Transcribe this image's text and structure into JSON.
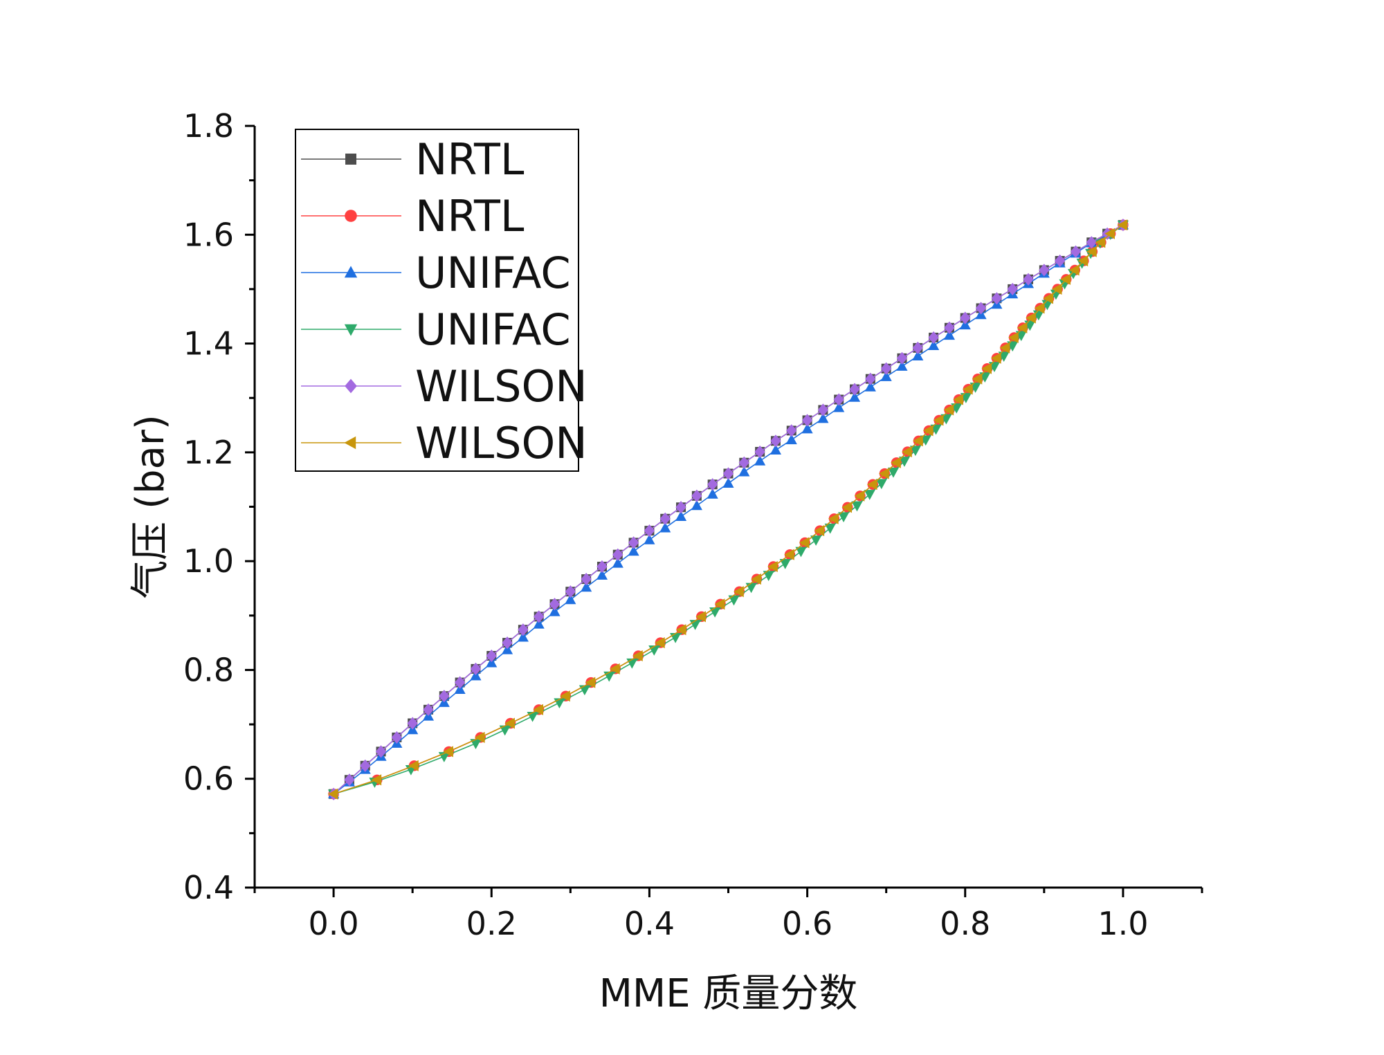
{
  "chart_data": {
    "type": "line",
    "title": "",
    "xlabel": "MME 质量分数",
    "ylabel": "气压 (bar)",
    "xlim": [
      -0.1,
      1.1
    ],
    "ylim": [
      0.4,
      1.8
    ],
    "xticks": [
      0.0,
      0.2,
      0.4,
      0.6,
      0.8,
      1.0
    ],
    "yticks": [
      0.4,
      0.6,
      0.8,
      1.0,
      1.2,
      1.4,
      1.6,
      1.8
    ],
    "xtick_labels": [
      "0.0",
      "0.2",
      "0.4",
      "0.6",
      "0.8",
      "1.0"
    ],
    "ytick_labels": [
      "0.4",
      "0.6",
      "0.8",
      "1.0",
      "1.2",
      "1.4",
      "1.6",
      "1.8"
    ],
    "grid": false,
    "legend_position": "top-left",
    "series": [
      {
        "name": "NRTL",
        "color": "#4d4d4d",
        "marker": "square",
        "x": [
          0.0,
          0.02,
          0.04,
          0.06,
          0.08,
          0.1,
          0.12,
          0.14,
          0.16,
          0.18,
          0.2,
          0.22,
          0.24,
          0.26,
          0.28,
          0.3,
          0.32,
          0.34,
          0.36,
          0.38,
          0.4,
          0.42,
          0.44,
          0.46,
          0.48,
          0.5,
          0.52,
          0.54,
          0.56,
          0.58,
          0.6,
          0.62,
          0.64,
          0.66,
          0.68,
          0.7,
          0.72,
          0.74,
          0.76,
          0.78,
          0.8,
          0.82,
          0.84,
          0.86,
          0.88,
          0.9,
          0.92,
          0.94,
          0.96,
          0.98,
          1.0
        ],
        "y": [
          0.572,
          0.598,
          0.624,
          0.65,
          0.676,
          0.702,
          0.727,
          0.752,
          0.777,
          0.802,
          0.826,
          0.85,
          0.874,
          0.898,
          0.921,
          0.944,
          0.967,
          0.99,
          1.012,
          1.034,
          1.056,
          1.078,
          1.099,
          1.12,
          1.141,
          1.161,
          1.181,
          1.201,
          1.221,
          1.24,
          1.259,
          1.278,
          1.297,
          1.316,
          1.335,
          1.354,
          1.373,
          1.392,
          1.411,
          1.429,
          1.447,
          1.465,
          1.483,
          1.5,
          1.518,
          1.535,
          1.552,
          1.569,
          1.586,
          1.602,
          1.618
        ]
      },
      {
        "name": "NRTL",
        "color": "#ff4040",
        "marker": "circle",
        "x": [
          0.0,
          0.055,
          0.102,
          0.146,
          0.186,
          0.224,
          0.26,
          0.294,
          0.326,
          0.357,
          0.386,
          0.414,
          0.441,
          0.466,
          0.49,
          0.514,
          0.536,
          0.557,
          0.578,
          0.597,
          0.616,
          0.634,
          0.651,
          0.667,
          0.683,
          0.698,
          0.713,
          0.727,
          0.741,
          0.754,
          0.767,
          0.78,
          0.792,
          0.804,
          0.816,
          0.828,
          0.84,
          0.851,
          0.862,
          0.873,
          0.884,
          0.895,
          0.906,
          0.917,
          0.928,
          0.939,
          0.95,
          0.961,
          0.972,
          0.984,
          1.0
        ],
        "y": [
          0.572,
          0.598,
          0.624,
          0.65,
          0.676,
          0.702,
          0.727,
          0.752,
          0.777,
          0.802,
          0.826,
          0.85,
          0.874,
          0.898,
          0.921,
          0.944,
          0.967,
          0.99,
          1.012,
          1.034,
          1.056,
          1.078,
          1.099,
          1.12,
          1.141,
          1.161,
          1.181,
          1.201,
          1.221,
          1.24,
          1.259,
          1.278,
          1.297,
          1.316,
          1.335,
          1.354,
          1.373,
          1.392,
          1.411,
          1.429,
          1.447,
          1.465,
          1.483,
          1.5,
          1.518,
          1.535,
          1.552,
          1.569,
          1.586,
          1.602,
          1.618
        ]
      },
      {
        "name": "UNIFAC",
        "color": "#1f6fe0",
        "marker": "triangle-up",
        "x": [
          0.0,
          0.02,
          0.04,
          0.06,
          0.08,
          0.1,
          0.12,
          0.14,
          0.16,
          0.18,
          0.2,
          0.22,
          0.24,
          0.26,
          0.28,
          0.3,
          0.32,
          0.34,
          0.36,
          0.38,
          0.4,
          0.42,
          0.44,
          0.46,
          0.48,
          0.5,
          0.52,
          0.54,
          0.56,
          0.58,
          0.6,
          0.62,
          0.64,
          0.66,
          0.68,
          0.7,
          0.72,
          0.74,
          0.76,
          0.78,
          0.8,
          0.82,
          0.84,
          0.86,
          0.88,
          0.9,
          0.92,
          0.94,
          0.96,
          0.98,
          1.0
        ],
        "y": [
          0.572,
          0.594,
          0.617,
          0.641,
          0.665,
          0.69,
          0.715,
          0.74,
          0.764,
          0.789,
          0.813,
          0.837,
          0.86,
          0.884,
          0.907,
          0.929,
          0.952,
          0.974,
          0.996,
          1.018,
          1.039,
          1.061,
          1.082,
          1.102,
          1.123,
          1.143,
          1.164,
          1.184,
          1.204,
          1.223,
          1.243,
          1.262,
          1.282,
          1.301,
          1.32,
          1.339,
          1.358,
          1.377,
          1.396,
          1.415,
          1.434,
          1.453,
          1.472,
          1.491,
          1.51,
          1.529,
          1.548,
          1.566,
          1.585,
          1.601,
          1.618
        ]
      },
      {
        "name": "UNIFAC",
        "color": "#2eaa6a",
        "marker": "triangle-down",
        "x": [
          0.0,
          0.052,
          0.098,
          0.14,
          0.18,
          0.217,
          0.252,
          0.286,
          0.318,
          0.349,
          0.378,
          0.406,
          0.433,
          0.458,
          0.483,
          0.507,
          0.529,
          0.551,
          0.572,
          0.592,
          0.611,
          0.629,
          0.646,
          0.663,
          0.679,
          0.694,
          0.709,
          0.723,
          0.737,
          0.75,
          0.763,
          0.776,
          0.789,
          0.801,
          0.813,
          0.825,
          0.837,
          0.849,
          0.86,
          0.871,
          0.882,
          0.893,
          0.904,
          0.915,
          0.926,
          0.937,
          0.948,
          0.959,
          0.971,
          0.984,
          1.0
        ],
        "y": [
          0.572,
          0.594,
          0.617,
          0.641,
          0.665,
          0.69,
          0.715,
          0.74,
          0.764,
          0.789,
          0.813,
          0.837,
          0.86,
          0.884,
          0.907,
          0.929,
          0.952,
          0.974,
          0.996,
          1.018,
          1.039,
          1.061,
          1.082,
          1.102,
          1.123,
          1.143,
          1.164,
          1.184,
          1.204,
          1.223,
          1.243,
          1.262,
          1.282,
          1.301,
          1.32,
          1.339,
          1.358,
          1.377,
          1.396,
          1.415,
          1.434,
          1.453,
          1.472,
          1.491,
          1.51,
          1.529,
          1.548,
          1.566,
          1.585,
          1.601,
          1.618
        ]
      },
      {
        "name": "WILSON",
        "color": "#a36ae0",
        "marker": "diamond",
        "x": [
          0.0,
          0.02,
          0.04,
          0.06,
          0.08,
          0.1,
          0.12,
          0.14,
          0.16,
          0.18,
          0.2,
          0.22,
          0.24,
          0.26,
          0.28,
          0.3,
          0.32,
          0.34,
          0.36,
          0.38,
          0.4,
          0.42,
          0.44,
          0.46,
          0.48,
          0.5,
          0.52,
          0.54,
          0.56,
          0.58,
          0.6,
          0.62,
          0.64,
          0.66,
          0.68,
          0.7,
          0.72,
          0.74,
          0.76,
          0.78,
          0.8,
          0.82,
          0.84,
          0.86,
          0.88,
          0.9,
          0.92,
          0.94,
          0.96,
          0.98,
          1.0
        ],
        "y": [
          0.572,
          0.598,
          0.624,
          0.65,
          0.676,
          0.702,
          0.727,
          0.752,
          0.777,
          0.802,
          0.826,
          0.85,
          0.874,
          0.898,
          0.921,
          0.944,
          0.967,
          0.99,
          1.012,
          1.034,
          1.056,
          1.078,
          1.099,
          1.12,
          1.141,
          1.161,
          1.181,
          1.201,
          1.221,
          1.24,
          1.259,
          1.278,
          1.297,
          1.316,
          1.335,
          1.354,
          1.373,
          1.392,
          1.411,
          1.429,
          1.447,
          1.465,
          1.483,
          1.5,
          1.518,
          1.535,
          1.552,
          1.569,
          1.586,
          1.602,
          1.618
        ]
      },
      {
        "name": "WILSON",
        "color": "#c8960c",
        "marker": "triangle-left",
        "x": [
          0.0,
          0.055,
          0.102,
          0.146,
          0.186,
          0.224,
          0.26,
          0.294,
          0.326,
          0.357,
          0.386,
          0.414,
          0.441,
          0.466,
          0.49,
          0.514,
          0.536,
          0.557,
          0.578,
          0.597,
          0.616,
          0.634,
          0.651,
          0.667,
          0.683,
          0.698,
          0.713,
          0.727,
          0.741,
          0.754,
          0.767,
          0.78,
          0.792,
          0.804,
          0.816,
          0.828,
          0.84,
          0.851,
          0.862,
          0.873,
          0.884,
          0.895,
          0.906,
          0.917,
          0.928,
          0.939,
          0.95,
          0.961,
          0.972,
          0.984,
          1.0
        ],
        "y": [
          0.572,
          0.598,
          0.624,
          0.65,
          0.676,
          0.702,
          0.727,
          0.752,
          0.777,
          0.802,
          0.826,
          0.85,
          0.874,
          0.898,
          0.921,
          0.944,
          0.967,
          0.99,
          1.012,
          1.034,
          1.056,
          1.078,
          1.099,
          1.12,
          1.141,
          1.161,
          1.181,
          1.201,
          1.221,
          1.24,
          1.259,
          1.278,
          1.297,
          1.316,
          1.335,
          1.354,
          1.373,
          1.392,
          1.411,
          1.429,
          1.447,
          1.465,
          1.483,
          1.5,
          1.518,
          1.535,
          1.552,
          1.569,
          1.586,
          1.602,
          1.618
        ]
      }
    ]
  }
}
